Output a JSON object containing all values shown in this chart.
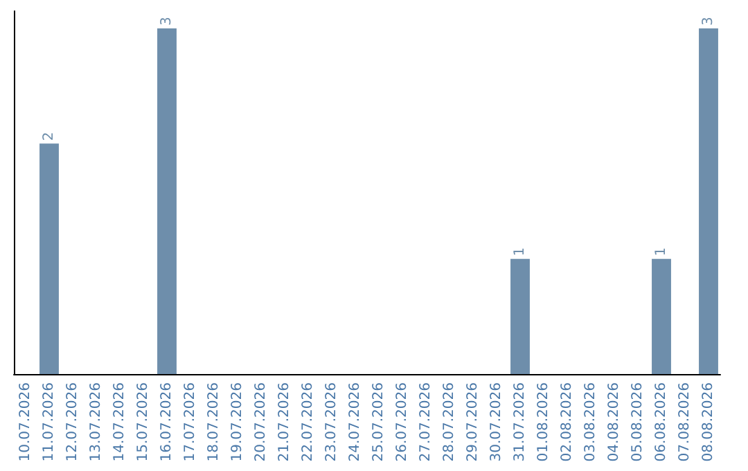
{
  "chart_data": {
    "type": "bar",
    "categories": [
      "10.07.2026",
      "11.07.2026",
      "12.07.2026",
      "13.07.2026",
      "14.07.2026",
      "15.07.2026",
      "16.07.2026",
      "17.07.2026",
      "18.07.2026",
      "19.07.2026",
      "20.07.2026",
      "21.07.2026",
      "22.07.2026",
      "23.07.2026",
      "24.07.2026",
      "25.07.2026",
      "26.07.2026",
      "27.07.2026",
      "28.07.2026",
      "29.07.2026",
      "30.07.2026",
      "31.07.2026",
      "01.08.2026",
      "02.08.2026",
      "03.08.2026",
      "04.08.2026",
      "05.08.2026",
      "06.08.2026",
      "07.08.2026",
      "08.08.2026"
    ],
    "values": [
      0,
      2,
      0,
      0,
      0,
      0,
      3,
      0,
      0,
      0,
      0,
      0,
      0,
      0,
      0,
      0,
      0,
      0,
      0,
      0,
      0,
      1,
      0,
      0,
      0,
      0,
      0,
      1,
      0,
      3
    ],
    "value_labels": [
      null,
      "2",
      null,
      null,
      null,
      null,
      "3",
      null,
      null,
      null,
      null,
      null,
      null,
      null,
      null,
      null,
      null,
      null,
      null,
      null,
      null,
      "1",
      null,
      null,
      null,
      null,
      null,
      "1",
      null,
      "3"
    ],
    "color": "#6e8eab",
    "tick_labels": "x"
  }
}
